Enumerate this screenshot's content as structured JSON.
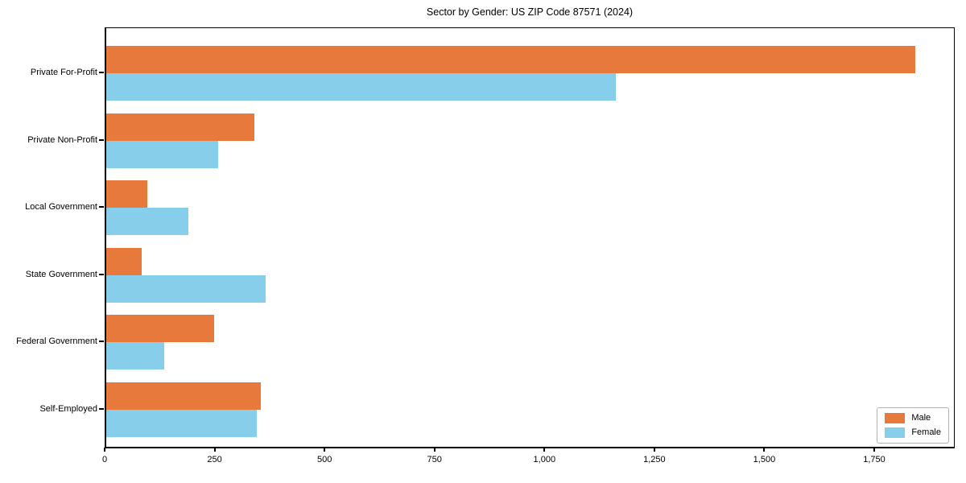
{
  "chart_data": {
    "type": "bar",
    "orientation": "horizontal",
    "title": "Sector by Gender: US ZIP Code 87571 (2024)",
    "categories": [
      "Private For-Profit",
      "Private Non-Profit",
      "Local Government",
      "State Government",
      "Federal Government",
      "Self-Employed"
    ],
    "series": [
      {
        "name": "Male",
        "color": "#E8793D",
        "values": [
          1840,
          336,
          94,
          81,
          246,
          351
        ]
      },
      {
        "name": "Female",
        "color": "#87CEEB",
        "values": [
          1158,
          254,
          186,
          362,
          132,
          342
        ]
      }
    ],
    "xlim": [
      0,
      1933
    ],
    "x_tick_values": [
      0,
      250,
      500,
      750,
      1000,
      1250,
      1500,
      1750
    ],
    "x_tick_labels": [
      "0",
      "250",
      "500",
      "750",
      "1,000",
      "1,250",
      "1,500",
      "1,750"
    ],
    "grid": false,
    "legend_position": "lower right",
    "background": "#ffffff"
  }
}
